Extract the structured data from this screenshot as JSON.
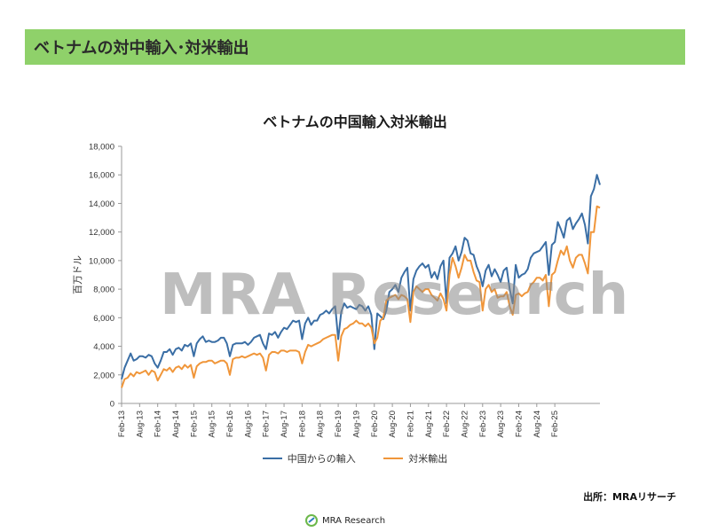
{
  "header": {
    "title": "ベトナムの対中輸入･対米輸出"
  },
  "watermark": "MRA Research",
  "source": "出所：MRAリサーチ",
  "footer": {
    "logo_text": "MRA Research"
  },
  "colors": {
    "header_bg": "#8fd16a",
    "china": "#3a6ea5",
    "us": "#f0963a"
  },
  "chart_data": {
    "type": "line",
    "title": "ベトナムの中国輸入対米輸出",
    "ylabel": "百万ドル",
    "xlabel": "",
    "ylim": [
      0,
      18000
    ],
    "yticks": [
      "0",
      "2,000",
      "4,000",
      "6,000",
      "8,000",
      "10,000",
      "12,000",
      "14,000",
      "16,000",
      "18,000"
    ],
    "xticks": [
      "Feb-13",
      "Aug-13",
      "Feb-14",
      "Aug-14",
      "Feb-15",
      "Aug-15",
      "Feb-16",
      "Aug-16",
      "Feb-17",
      "Aug-17",
      "Feb-18",
      "Aug-18",
      "Feb-19",
      "Aug-19",
      "Feb-20",
      "Aug-20",
      "Feb-21",
      "Aug-21",
      "Feb-22",
      "Aug-22",
      "Feb-23",
      "Aug-23",
      "Feb-24",
      "Aug-24",
      "Feb-25"
    ],
    "x_start": "Feb-13",
    "x_end": "Jun-25",
    "grid": false,
    "legend_position": "bottom",
    "series": [
      {
        "name": "中国からの輸入",
        "values": [
          1700,
          2500,
          3000,
          3500,
          3000,
          3100,
          3300,
          3300,
          3200,
          3400,
          3300,
          2800,
          2500,
          3000,
          3600,
          3600,
          3800,
          3400,
          3800,
          3900,
          3700,
          4100,
          4000,
          4200,
          3300,
          4200,
          4500,
          4700,
          4300,
          4400,
          4300,
          4300,
          4400,
          4600,
          4600,
          4200,
          3300,
          4100,
          4200,
          4200,
          4200,
          4300,
          4100,
          4300,
          4600,
          4700,
          4800,
          4200,
          3800,
          4900,
          4800,
          5000,
          4600,
          5000,
          5300,
          5200,
          5500,
          5800,
          5700,
          5800,
          4500,
          5600,
          6000,
          5500,
          5800,
          5800,
          6200,
          6300,
          6500,
          6300,
          6600,
          6800,
          4500,
          6400,
          7000,
          6700,
          6800,
          6700,
          6600,
          6900,
          6800,
          6500,
          6800,
          6200,
          3800,
          6300,
          6100,
          5900,
          6500,
          7800,
          8000,
          8300,
          7800,
          8800,
          9200,
          9500,
          6500,
          8700,
          9300,
          9600,
          9800,
          9500,
          9700,
          8800,
          9200,
          8700,
          9600,
          10000,
          7000,
          10200,
          10500,
          11000,
          10000,
          10600,
          11600,
          11400,
          10500,
          10400,
          9600,
          9100,
          8200,
          9300,
          9700,
          8900,
          9400,
          9000,
          8500,
          9300,
          9500,
          8000,
          7000,
          9700,
          8800,
          9000,
          9100,
          9400,
          10200,
          10500,
          10600,
          10700,
          11000,
          11300,
          9000,
          11100,
          11300,
          12700,
          12200,
          11600,
          12800,
          13000,
          12200,
          12600,
          12900,
          13300,
          12500,
          11200,
          14500,
          15000,
          16000,
          15300
        ]
      },
      {
        "name": "対米輸出",
        "values": [
          1100,
          1700,
          1800,
          2100,
          1900,
          2200,
          2100,
          2200,
          2300,
          2000,
          2300,
          2200,
          1600,
          2000,
          2400,
          2300,
          2500,
          2200,
          2500,
          2600,
          2400,
          2700,
          2500,
          2700,
          1800,
          2600,
          2800,
          2900,
          2900,
          3000,
          3000,
          2800,
          2900,
          3000,
          3000,
          2800,
          2000,
          3100,
          3200,
          3200,
          3300,
          3200,
          3300,
          3400,
          3500,
          3400,
          3500,
          3200,
          2300,
          3400,
          3600,
          3600,
          3500,
          3700,
          3700,
          3600,
          3700,
          3700,
          3700,
          3600,
          2800,
          3600,
          4100,
          4000,
          4100,
          4200,
          4300,
          4500,
          4600,
          4700,
          4800,
          4800,
          3000,
          4700,
          5200,
          5300,
          5500,
          5600,
          5800,
          5600,
          5600,
          5400,
          5600,
          5300,
          4200,
          4600,
          5800,
          6000,
          7200,
          7400,
          7500,
          7600,
          7300,
          7600,
          7500,
          7300,
          5700,
          7800,
          8200,
          8000,
          7800,
          8000,
          8000,
          7600,
          7400,
          7200,
          7700,
          7300,
          6500,
          9000,
          10200,
          9600,
          8800,
          9500,
          10400,
          10000,
          10000,
          9200,
          8600,
          8500,
          6500,
          8000,
          8300,
          7800,
          8000,
          7400,
          7500,
          7500,
          7800,
          6800,
          6200,
          7600,
          7700,
          7500,
          7700,
          7800,
          8300,
          8500,
          8800,
          8800,
          8600,
          9000,
          6800,
          9000,
          9200,
          10000,
          10700,
          10400,
          11000,
          10000,
          9500,
          10200,
          10400,
          10400,
          9800,
          9100,
          12000,
          12000,
          13800,
          13700
        ]
      }
    ]
  }
}
